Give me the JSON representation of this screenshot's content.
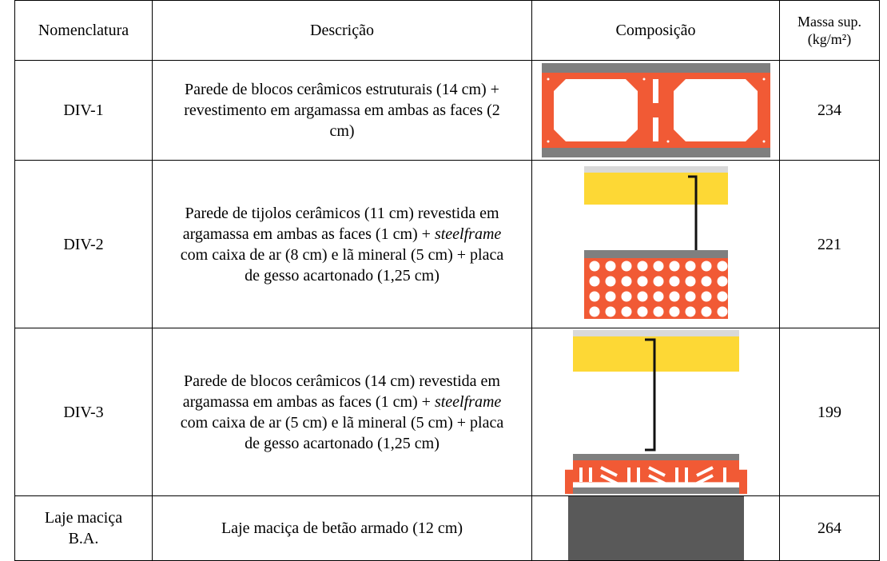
{
  "table": {
    "header": {
      "name": "Nomenclatura",
      "description": "Descrição",
      "composition": "Composição",
      "mass": [
        "Massa sup.",
        "(kg/m²)"
      ]
    },
    "rows": [
      {
        "name": [
          "DIV-1"
        ],
        "description": [
          "Parede de blocos cerâmicos estruturais (14 cm) + revestimento em argamassa em ambas as faces (2 cm)"
        ],
        "mass": 234
      },
      {
        "name": [
          "DIV-2"
        ],
        "description": [
          "Parede de tijolos cerâmicos (11 cm) revestida em argamassa em ambas as faces (1 cm) + ",
          "steelframe",
          " com caixa de ar (8 cm) e lã mineral (5 cm) + placa de gesso acartonado (1,25 cm)"
        ],
        "mass": 221
      },
      {
        "name": [
          "DIV-3"
        ],
        "description": [
          "Parede de blocos cerâmicos (14 cm) revestida em argamassa em ambas as faces (1 cm) + ",
          "steelframe",
          " com caixa de ar (5 cm) e lã mineral (5 cm) + placa de gesso acartonado (1,25 cm)"
        ],
        "mass": 199
      },
      {
        "name": [
          "Laje maciça",
          "B.A."
        ],
        "description": [
          "Laje maciça de betão armado (12 cm)"
        ],
        "mass": 264
      }
    ]
  }
}
